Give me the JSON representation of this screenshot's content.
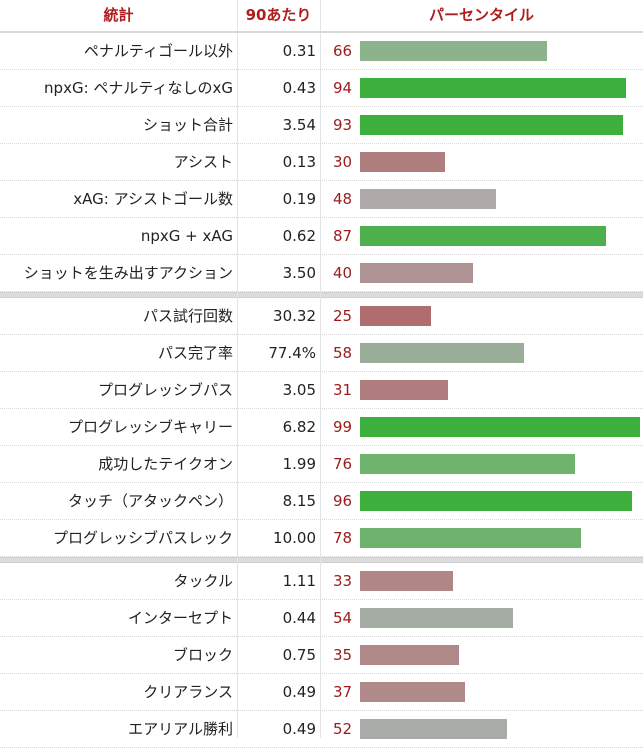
{
  "header": {
    "stat": "統計",
    "per90": "90あたり",
    "percentile": "パーセンタイル"
  },
  "colors": {
    "header_text": "#b01c1c",
    "percentile_text": "#9b1b1b"
  },
  "groups": [
    [
      {
        "label": "ペナルティゴール以外",
        "value": "0.31",
        "pct": 66,
        "color": "#8db38d"
      },
      {
        "label": "npxG: ペナルティなしのxG",
        "value": "0.43",
        "pct": 94,
        "color": "#3daf3d"
      },
      {
        "label": "ショット合計",
        "value": "3.54",
        "pct": 93,
        "color": "#3daf3d"
      },
      {
        "label": "アシスト",
        "value": "0.13",
        "pct": 30,
        "color": "#b07e7e"
      },
      {
        "label": "xAG: アシストゴール数",
        "value": "0.19",
        "pct": 48,
        "color": "#afa9a9"
      },
      {
        "label": "npxG + xAG",
        "value": "0.62",
        "pct": 87,
        "color": "#4cb14c"
      },
      {
        "label": "ショットを生み出すアクション",
        "value": "3.50",
        "pct": 40,
        "color": "#ad9393"
      }
    ],
    [
      {
        "label": "パス試行回数",
        "value": "30.32",
        "pct": 25,
        "color": "#b06d6d"
      },
      {
        "label": "パス完了率",
        "value": "77.4%",
        "pct": 58,
        "color": "#99ad99"
      },
      {
        "label": "プログレッシブパス",
        "value": "3.05",
        "pct": 31,
        "color": "#b07e7e"
      },
      {
        "label": "プログレッシブキャリー",
        "value": "6.82",
        "pct": 99,
        "color": "#3daf3d"
      },
      {
        "label": "成功したテイクオン",
        "value": "1.99",
        "pct": 76,
        "color": "#6fb36f"
      },
      {
        "label": "タッチ（アタックペン）",
        "value": "8.15",
        "pct": 96,
        "color": "#3daf3d"
      },
      {
        "label": "プログレッシブパスレック",
        "value": "10.00",
        "pct": 78,
        "color": "#6db26d"
      }
    ],
    [
      {
        "label": "タックル",
        "value": "1.11",
        "pct": 33,
        "color": "#b08686"
      },
      {
        "label": "インターセプト",
        "value": "0.44",
        "pct": 54,
        "color": "#a4aca4"
      },
      {
        "label": "ブロック",
        "value": "0.75",
        "pct": 35,
        "color": "#b08888"
      },
      {
        "label": "クリアランス",
        "value": "0.49",
        "pct": 37,
        "color": "#b08a8a"
      },
      {
        "label": "エアリアル勝利",
        "value": "0.49",
        "pct": 52,
        "color": "#a8aba8"
      }
    ]
  ]
}
